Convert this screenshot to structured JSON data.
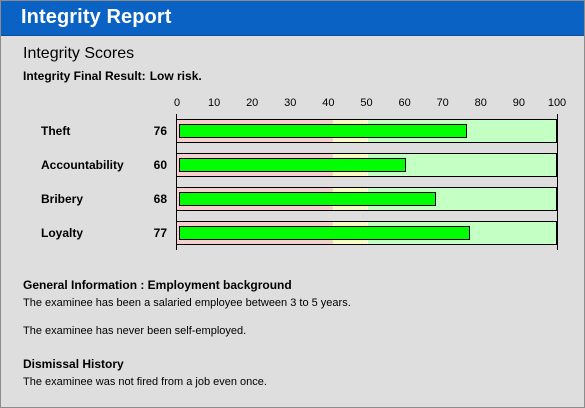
{
  "header": {
    "title": "Integrity Report"
  },
  "scores": {
    "title": "Integrity Scores",
    "final_result_label": "Integrity Final Result:",
    "final_result_value": "Low risk."
  },
  "chart_data": {
    "type": "bar",
    "orientation": "horizontal",
    "title": "",
    "xlabel": "",
    "ylabel": "",
    "xlim": [
      0,
      100
    ],
    "ticks": [
      "0",
      "10",
      "20",
      "30",
      "40",
      "50",
      "60",
      "70",
      "80",
      "90",
      "100"
    ],
    "zones": [
      {
        "from": 0,
        "to": 41,
        "color": "#f7cfcf"
      },
      {
        "from": 41,
        "to": 50,
        "color": "#fbfbc4"
      },
      {
        "from": 50,
        "to": 100,
        "color": "#c4ffc4"
      }
    ],
    "bar_color": "#00ff00",
    "categories": [
      "Theft",
      "Accountability",
      "Bribery",
      "Loyalty"
    ],
    "values": [
      76,
      60,
      68,
      77
    ],
    "value_labels": [
      "76",
      "60",
      "68",
      "77"
    ]
  },
  "general": {
    "heading": "General Information : Employment background",
    "line1": "The examinee has been a salaried employee between 3 to 5 years.",
    "line2": "The examinee has never been self-employed."
  },
  "dismissal": {
    "heading": "Dismissal History",
    "line1": "The examinee was not fired from a job even once."
  }
}
